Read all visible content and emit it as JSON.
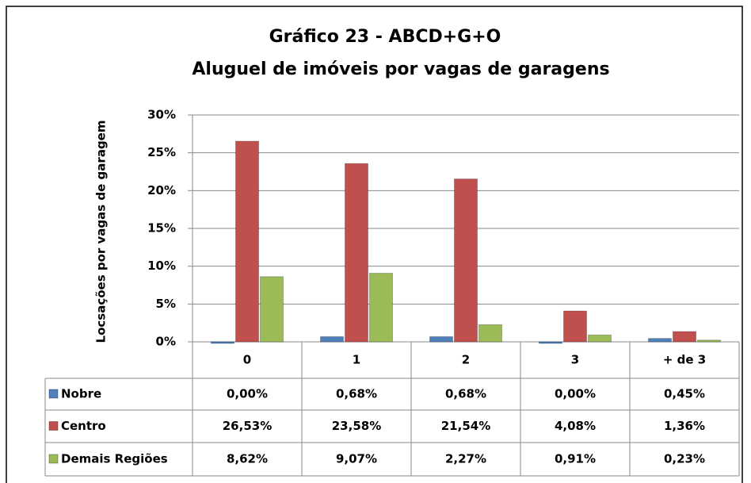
{
  "chart_data": {
    "type": "bar",
    "title": "Gráfico 23 - ABCD+G+O",
    "subtitle": "Aluguel de imóveis por vagas de garagens",
    "y_label": "Locsações por vagas de garagem",
    "categories": [
      "0",
      "1",
      "2",
      "3",
      "+ de 3"
    ],
    "series": [
      {
        "name": "Nobre",
        "color": "#4f81bd",
        "values": [
          0.0,
          0.68,
          0.68,
          0.0,
          0.45
        ],
        "value_labels": [
          "0,00%",
          "0,68%",
          "0,68%",
          "0,00%",
          "0,45%"
        ]
      },
      {
        "name": "Centro",
        "color": "#c0504d",
        "values": [
          26.53,
          23.58,
          21.54,
          4.08,
          1.36
        ],
        "value_labels": [
          "26,53%",
          "23,58%",
          "21,54%",
          "4,08%",
          "1,36%"
        ]
      },
      {
        "name": "Demais Regiões",
        "color": "#9bbb59",
        "values": [
          8.62,
          9.07,
          2.27,
          0.91,
          0.23
        ],
        "value_labels": [
          "8,62%",
          "9,07%",
          "2,27%",
          "0,91%",
          "0,23%"
        ]
      }
    ],
    "ylim": [
      0,
      30
    ],
    "yticks": [
      {
        "value": 0,
        "label": "0%"
      },
      {
        "value": 5,
        "label": "5%"
      },
      {
        "value": 10,
        "label": "10%"
      },
      {
        "value": 15,
        "label": "15%"
      },
      {
        "value": 20,
        "label": "20%"
      },
      {
        "value": 25,
        "label": "25%"
      },
      {
        "value": 30,
        "label": "30%"
      }
    ],
    "grid": true,
    "data_table": true
  }
}
